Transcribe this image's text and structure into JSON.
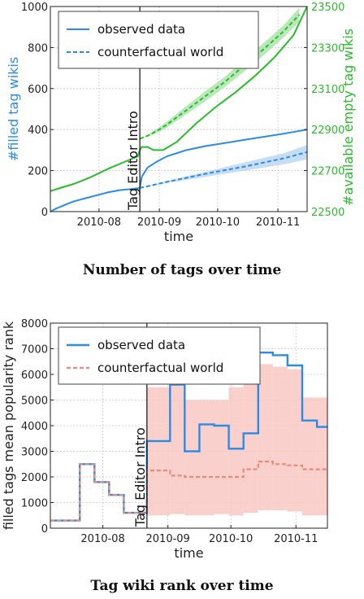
{
  "figures": [
    {
      "caption": "Number of tags over time"
    },
    {
      "caption": "Tag wiki rank over time"
    }
  ],
  "colors": {
    "observed_blue": "#2b8ce6",
    "blue_band": "#b8d4f0",
    "green": "#2bbb2b",
    "green_band": "#a8e3a8",
    "counterfactual_red": "#ea8a78",
    "red_band": "#f8c8c2"
  },
  "chart_data": [
    {
      "type": "line",
      "xlabel": "time",
      "ylabel": "#filled tag wikis",
      "y2label": "#available empty tag wikis",
      "x_ticks": [
        "2010-08",
        "2010-09",
        "2010-10",
        "2010-11"
      ],
      "x_tick_pos": [
        25,
        56,
        86,
        117
      ],
      "xlim": [
        0,
        132
      ],
      "ylim": [
        0,
        1000
      ],
      "y_ticks": [
        0,
        200,
        400,
        600,
        800,
        1000
      ],
      "y2lim": [
        22500,
        23500
      ],
      "y2_ticks": [
        22500,
        22700,
        22900,
        23100,
        23300,
        23500
      ],
      "grid": true,
      "legend_placement": "top-left",
      "intervention": {
        "x": 46,
        "label": "Tag Editor Intro"
      },
      "series": [
        {
          "name": "observed data",
          "axis": "left",
          "style": "solid",
          "x": [
            0,
            3,
            8,
            12,
            18,
            24,
            30,
            36,
            42,
            46,
            47,
            50,
            55,
            60,
            70,
            80,
            90,
            100,
            110,
            120,
            132
          ],
          "values": [
            0,
            15,
            35,
            50,
            65,
            80,
            95,
            105,
            110,
            115,
            170,
            215,
            245,
            270,
            300,
            320,
            335,
            350,
            365,
            380,
            400
          ]
        },
        {
          "name": "counterfactual world",
          "axis": "left",
          "style": "dashed",
          "x": [
            46,
            60,
            80,
            100,
            120,
            132
          ],
          "values": [
            115,
            145,
            185,
            220,
            260,
            290
          ],
          "band_low": [
            115,
            140,
            170,
            200,
            230,
            255
          ],
          "band_high": [
            115,
            150,
            195,
            240,
            285,
            325
          ]
        },
        {
          "axis": "right",
          "style": "solid",
          "x": [
            0,
            5,
            12,
            20,
            30,
            40,
            45,
            46,
            47,
            50,
            53,
            58,
            65,
            75,
            85,
            95,
            105,
            115,
            125,
            132
          ],
          "values": [
            22600,
            22615,
            22635,
            22665,
            22710,
            22750,
            22770,
            22800,
            22815,
            22815,
            22800,
            22800,
            22840,
            22930,
            23010,
            23080,
            23160,
            23250,
            23360,
            23500
          ]
        },
        {
          "axis": "right",
          "style": "dashed",
          "x": [
            46,
            50,
            55,
            60,
            70,
            80,
            90,
            100,
            110,
            120,
            128
          ],
          "values": [
            22855,
            22870,
            22895,
            22925,
            22995,
            23065,
            23135,
            23215,
            23295,
            23380,
            23460
          ],
          "band_low": [
            22855,
            22865,
            22885,
            22910,
            22975,
            23040,
            23110,
            23185,
            23265,
            23350,
            23425
          ],
          "band_high": [
            22855,
            22875,
            22905,
            22940,
            23015,
            23090,
            23160,
            23245,
            23325,
            23410,
            23495
          ]
        }
      ]
    },
    {
      "type": "line",
      "xlabel": "time",
      "ylabel": "filled tags mean popularity rank",
      "x_ticks": [
        "2010-08",
        "2010-09",
        "2010-10",
        "2010-11"
      ],
      "x_tick_pos": [
        25,
        56,
        86,
        117
      ],
      "xlim": [
        0,
        132
      ],
      "ylim": [
        0,
        8000
      ],
      "y_ticks": [
        0,
        1000,
        2000,
        3000,
        4000,
        5000,
        6000,
        7000,
        8000
      ],
      "grid": true,
      "legend_placement": "top-left",
      "intervention": {
        "x": 46,
        "label": "Tag Editor Intro"
      },
      "series": [
        {
          "name": "observed data",
          "style": "solid",
          "step": true,
          "edges": [
            0,
            7,
            14,
            21,
            28,
            35,
            42,
            46,
            50,
            57,
            64,
            71,
            78,
            85,
            92,
            99,
            106,
            113,
            120,
            127,
            132
          ],
          "values": [
            300,
            300,
            2500,
            1800,
            1300,
            600,
            600,
            3400,
            3400,
            5600,
            3000,
            4050,
            4000,
            3100,
            3700,
            6850,
            6750,
            6350,
            4200,
            3950
          ]
        },
        {
          "name": "counterfactual world",
          "style": "dashed",
          "step": true,
          "edges": [
            0,
            7,
            14,
            21,
            28,
            35,
            42,
            46,
            50,
            57,
            64,
            71,
            78,
            85,
            92,
            99,
            106,
            113,
            120,
            127,
            132
          ],
          "values": [
            300,
            300,
            2500,
            1800,
            1300,
            600,
            600,
            2250,
            2250,
            2050,
            2000,
            2000,
            2000,
            2000,
            2300,
            2600,
            2500,
            2450,
            2300,
            2300
          ],
          "band_low": [
            300,
            300,
            2500,
            1800,
            1300,
            600,
            600,
            500,
            500,
            550,
            500,
            500,
            550,
            500,
            600,
            700,
            700,
            650,
            500,
            500
          ],
          "band_high": [
            300,
            300,
            2500,
            1800,
            1300,
            600,
            600,
            5500,
            5500,
            5600,
            5000,
            5000,
            5000,
            5500,
            5700,
            6400,
            6300,
            6200,
            5100,
            5100
          ]
        }
      ]
    }
  ]
}
